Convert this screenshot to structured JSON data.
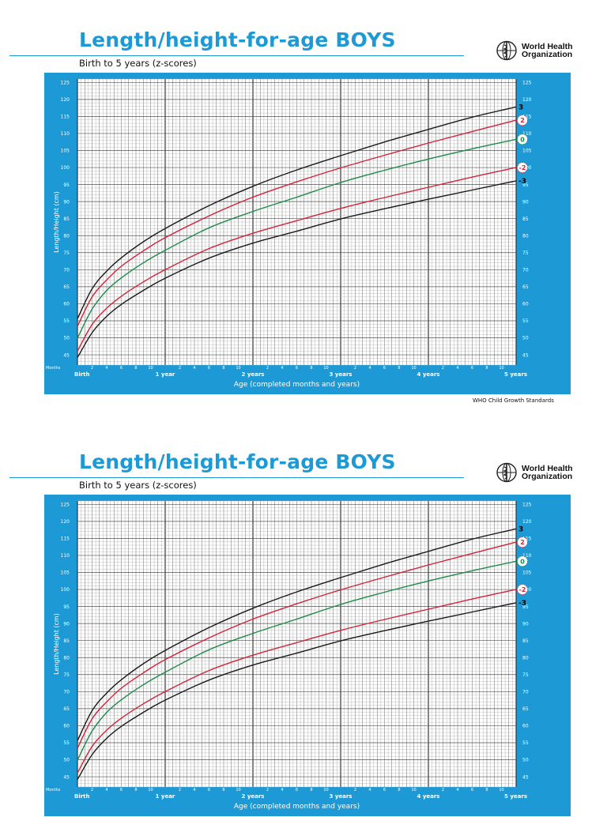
{
  "header": {
    "title": "Length/height-for-age BOYS",
    "subtitle": "Birth to 5 years (z-scores)",
    "org_name_line1": "World Health",
    "org_name_line2": "Organization",
    "emblem_icon": "who-emblem-icon"
  },
  "footer": {
    "credit": "WHO Child Growth Standards"
  },
  "colors": {
    "frame": "#1d9ad6",
    "grid_fill": "#ffffff",
    "grid_line": "#6a6a6a",
    "title": "#1d9ad6",
    "sd3": "#1a1a1a",
    "sd2": "#d0243a",
    "median": "#1d8a4a"
  },
  "chart_data": {
    "type": "line",
    "title": "Length/height-for-age BOYS",
    "subtitle": "Birth to 5 years (z-scores)",
    "xlabel": "Age (completed months and years)",
    "ylabel": "Length/Height (cm)",
    "xlim": [
      0,
      60
    ],
    "ylim": [
      42,
      126
    ],
    "grid": true,
    "y_ticks": [
      45,
      50,
      55,
      60,
      65,
      70,
      75,
      80,
      85,
      90,
      95,
      100,
      105,
      110,
      115,
      120,
      125
    ],
    "x_corner_label": "Months",
    "x_minor_ticks": [
      {
        "m": 2,
        "label": "2"
      },
      {
        "m": 4,
        "label": "4"
      },
      {
        "m": 6,
        "label": "6"
      },
      {
        "m": 8,
        "label": "8"
      },
      {
        "m": 10,
        "label": "10"
      },
      {
        "m": 14,
        "label": "2"
      },
      {
        "m": 16,
        "label": "4"
      },
      {
        "m": 18,
        "label": "6"
      },
      {
        "m": 20,
        "label": "8"
      },
      {
        "m": 22,
        "label": "10"
      },
      {
        "m": 26,
        "label": "2"
      },
      {
        "m": 28,
        "label": "4"
      },
      {
        "m": 30,
        "label": "6"
      },
      {
        "m": 32,
        "label": "8"
      },
      {
        "m": 34,
        "label": "10"
      },
      {
        "m": 38,
        "label": "2"
      },
      {
        "m": 40,
        "label": "4"
      },
      {
        "m": 42,
        "label": "6"
      },
      {
        "m": 44,
        "label": "8"
      },
      {
        "m": 46,
        "label": "10"
      },
      {
        "m": 50,
        "label": "2"
      },
      {
        "m": 52,
        "label": "4"
      },
      {
        "m": 54,
        "label": "6"
      },
      {
        "m": 56,
        "label": "8"
      },
      {
        "m": 58,
        "label": "10"
      }
    ],
    "x_major_ticks": [
      {
        "m": 0,
        "label": "Birth"
      },
      {
        "m": 12,
        "label": "1 year"
      },
      {
        "m": 24,
        "label": "2 years"
      },
      {
        "m": 36,
        "label": "3 years"
      },
      {
        "m": 48,
        "label": "4 years"
      },
      {
        "m": 60,
        "label": "5 years"
      }
    ],
    "x": [
      0,
      2,
      4,
      6,
      9,
      12,
      18,
      24,
      30,
      36,
      42,
      48,
      54,
      60
    ],
    "series": [
      {
        "name": "3",
        "color": "#1a1a1a",
        "values": [
          55.6,
          64.4,
          69.6,
          73.5,
          78.2,
          82.1,
          88.8,
          94.5,
          99.3,
          103.5,
          107.5,
          111.2,
          114.8,
          117.8
        ]
      },
      {
        "name": "2",
        "color": "#d0243a",
        "values": [
          53.4,
          62.0,
          67.0,
          71.0,
          75.5,
          79.4,
          85.8,
          91.3,
          95.8,
          99.9,
          103.6,
          107.2,
          110.6,
          113.9
        ]
      },
      {
        "name": "0",
        "color": "#1d8a4a",
        "values": [
          49.9,
          58.4,
          63.9,
          67.6,
          72.0,
          75.7,
          82.3,
          87.1,
          91.3,
          95.6,
          99.2,
          102.5,
          105.5,
          108.3
        ]
      },
      {
        "name": "-2",
        "color": "#d0243a",
        "values": [
          46.1,
          53.9,
          58.7,
          62.2,
          66.4,
          70.0,
          76.2,
          80.7,
          84.4,
          88.0,
          91.2,
          94.2,
          97.2,
          100.0
        ]
      },
      {
        "name": "-3",
        "color": "#1a1a1a",
        "values": [
          44.2,
          51.5,
          56.3,
          59.8,
          63.9,
          67.5,
          73.4,
          77.8,
          81.3,
          84.9,
          87.9,
          90.7,
          93.4,
          96.1
        ]
      }
    ]
  }
}
